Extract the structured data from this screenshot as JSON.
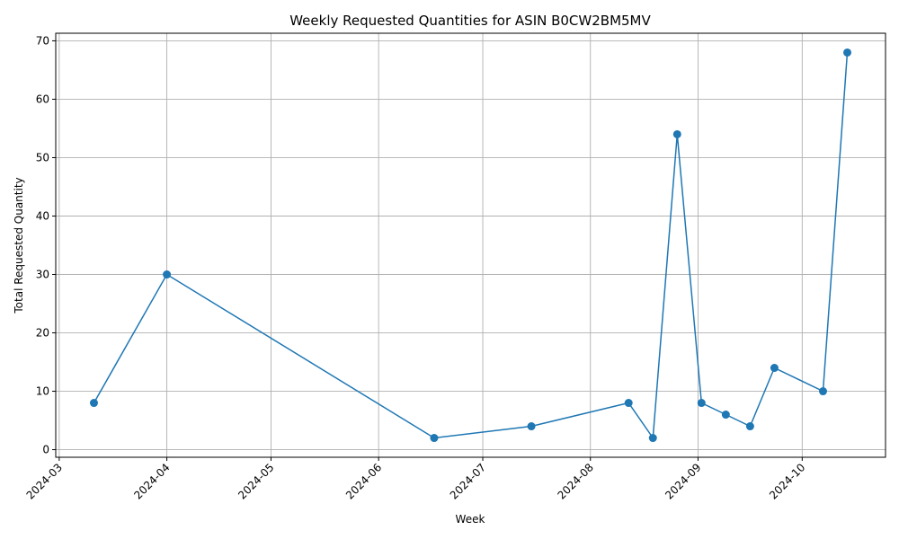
{
  "chart_data": {
    "type": "line",
    "title": "Weekly Requested Quantities for ASIN B0CW2BM5MV",
    "xlabel": "Week",
    "ylabel": "Total Requested Quantity",
    "x": [
      "2024-03-11",
      "2024-04-01",
      "2024-06-17",
      "2024-07-15",
      "2024-08-12",
      "2024-08-19",
      "2024-08-26",
      "2024-09-02",
      "2024-09-09",
      "2024-09-16",
      "2024-09-23",
      "2024-10-07",
      "2024-10-14"
    ],
    "series": [
      {
        "values": [
          8,
          30,
          2,
          4,
          8,
          2,
          54,
          8,
          6,
          4,
          14,
          10,
          68
        ],
        "color": "#1f77b4"
      }
    ],
    "xlim": [
      "2024-02-29",
      "2024-10-25"
    ],
    "ylim": [
      -1.3,
      71.3
    ],
    "x_ticks": [
      "2024-03",
      "2024-04",
      "2024-05",
      "2024-06",
      "2024-07",
      "2024-08",
      "2024-09",
      "2024-10"
    ],
    "y_ticks": [
      0,
      10,
      20,
      30,
      40,
      50,
      60,
      70
    ],
    "grid": true,
    "marker": "circle",
    "x_tick_rotation": 45
  }
}
